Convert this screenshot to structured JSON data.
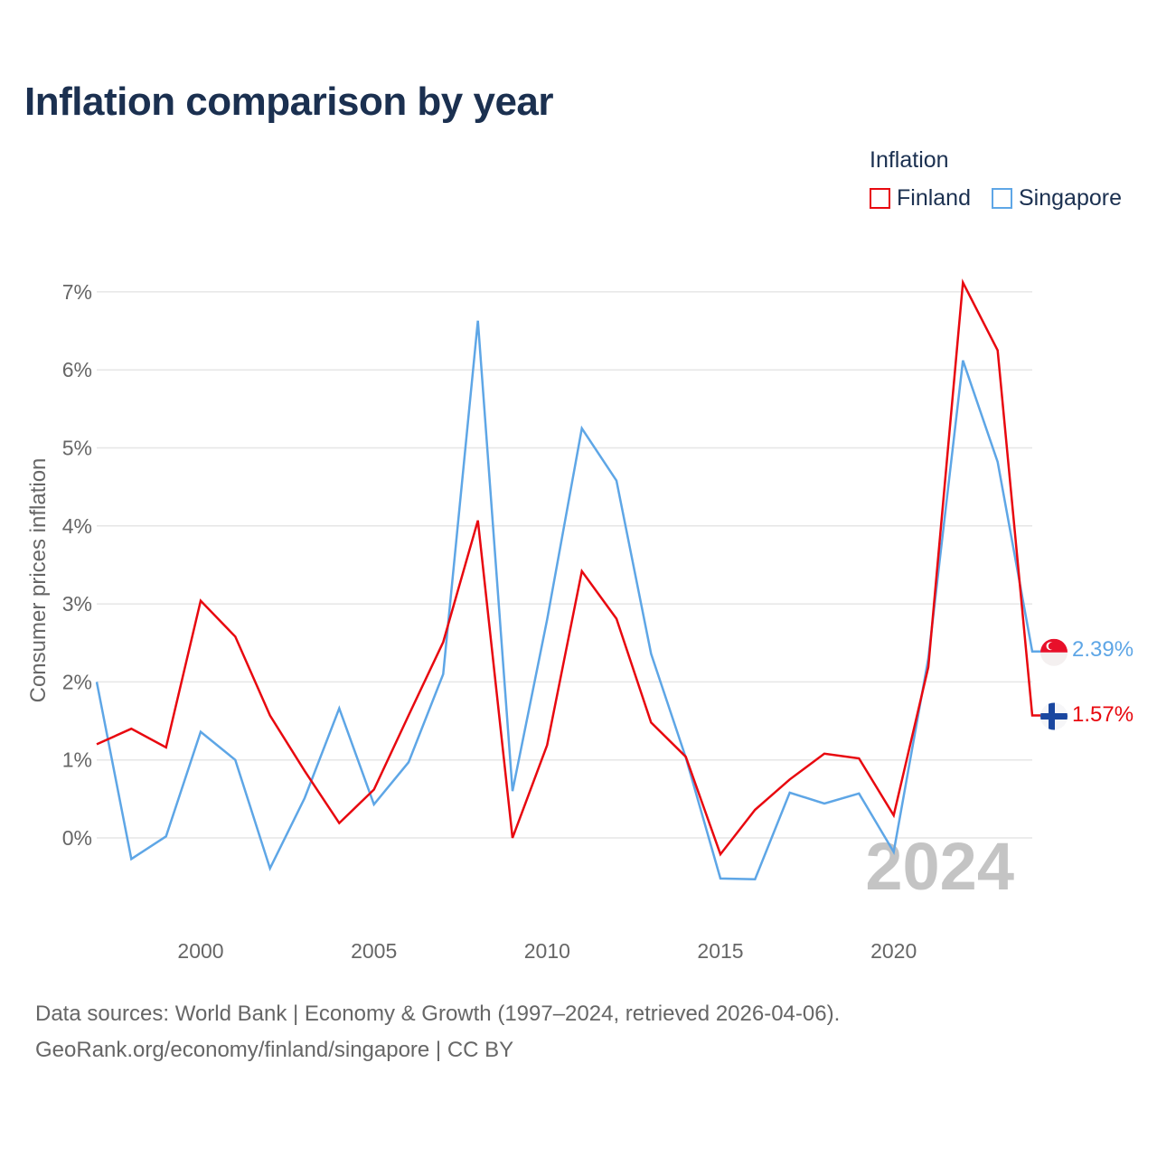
{
  "title": "Inflation comparison by year",
  "legend": {
    "title": "Inflation",
    "items": [
      {
        "label": "Finland",
        "color": "#e8080f"
      },
      {
        "label": "Singapore",
        "color": "#5ea6e6"
      }
    ]
  },
  "year_watermark": "2024",
  "end_labels": {
    "finland": "1.57%",
    "singapore": "2.39%"
  },
  "flags": {
    "finland": "finland-flag-icon",
    "singapore": "singapore-flag-icon"
  },
  "source": {
    "line1": "Data sources: World Bank | Economy & Growth (1997–2024, retrieved 2026-04-06).",
    "line2": "GeoRank.org/economy/finland/singapore | CC BY"
  },
  "chart_data": {
    "type": "line",
    "title": "Inflation comparison by year",
    "xlabel": "",
    "ylabel": "Consumer prices inflation",
    "x": [
      1997,
      1998,
      1999,
      2000,
      2001,
      2002,
      2003,
      2004,
      2005,
      2006,
      2007,
      2008,
      2009,
      2010,
      2011,
      2012,
      2013,
      2014,
      2015,
      2016,
      2017,
      2018,
      2019,
      2020,
      2021,
      2022,
      2023,
      2024
    ],
    "xlim": [
      1997,
      2024
    ],
    "ylim": [
      -1.0,
      7.2
    ],
    "x_ticks": [
      2000,
      2005,
      2010,
      2015,
      2020
    ],
    "x_tick_labels": [
      "2000",
      "2005",
      "2010",
      "2015",
      "2020"
    ],
    "y_ticks": [
      0,
      1,
      2,
      3,
      4,
      5,
      6,
      7
    ],
    "y_tick_labels": [
      "0%",
      "1%",
      "2%",
      "3%",
      "4%",
      "5%",
      "6%",
      "7%"
    ],
    "grid": true,
    "legend_position": "top-right",
    "series": [
      {
        "name": "Finland",
        "color": "#e8080f",
        "values": [
          1.2,
          1.4,
          1.16,
          3.04,
          2.58,
          1.57,
          0.86,
          0.19,
          0.62,
          1.57,
          2.51,
          4.07,
          0.0,
          1.19,
          3.42,
          2.81,
          1.48,
          1.04,
          -0.21,
          0.36,
          0.75,
          1.08,
          1.02,
          0.29,
          2.19,
          7.12,
          6.25,
          1.57
        ]
      },
      {
        "name": "Singapore",
        "color": "#5ea6e6",
        "values": [
          2.0,
          -0.27,
          0.02,
          1.36,
          1.0,
          -0.39,
          0.51,
          1.66,
          0.43,
          0.97,
          2.1,
          6.63,
          0.6,
          2.8,
          5.25,
          4.58,
          2.36,
          1.03,
          -0.52,
          -0.53,
          0.58,
          0.44,
          0.57,
          -0.18,
          2.3,
          6.12,
          4.82,
          2.39
        ]
      }
    ]
  }
}
